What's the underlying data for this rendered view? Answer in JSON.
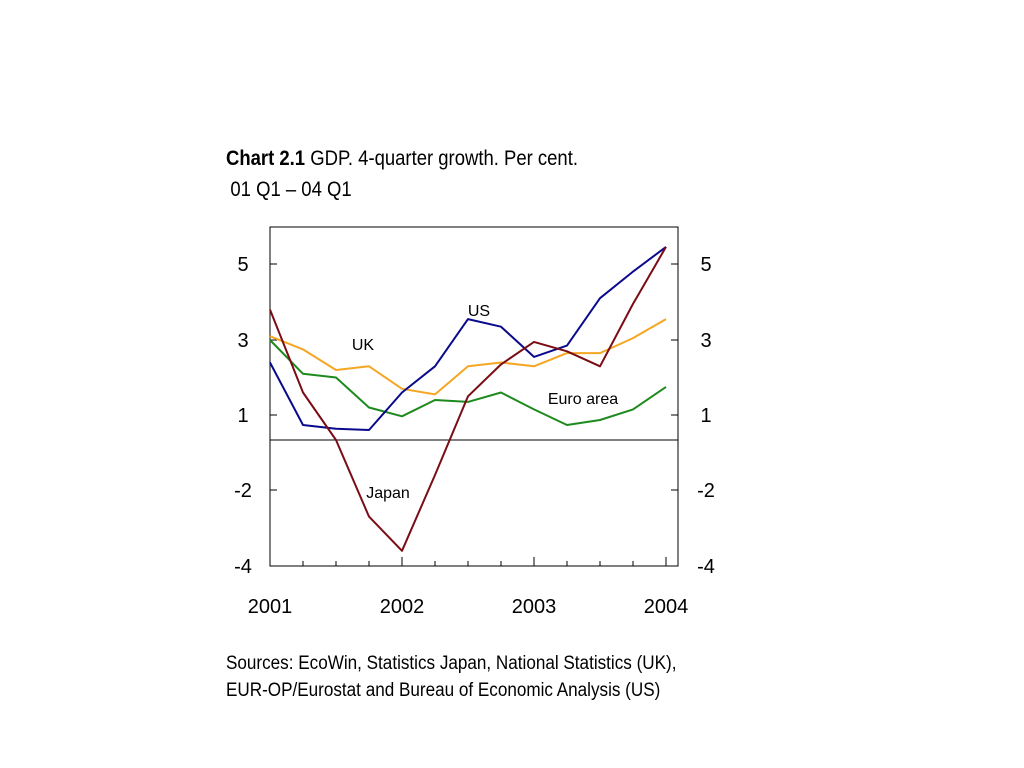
{
  "chart_data": {
    "type": "line",
    "title_number": "Chart 2.1",
    "title": "GDP. 4-quarter growth. Per cent.",
    "subtitle": "01 Q1 – 04 Q1",
    "x": [
      "01 Q1",
      "01 Q2",
      "01 Q3",
      "01 Q4",
      "02 Q1",
      "02 Q2",
      "02 Q3",
      "02 Q4",
      "03 Q1",
      "03 Q2",
      "03 Q3",
      "03 Q4",
      "04 Q1"
    ],
    "x_tick_labels": [
      "2001",
      "2002",
      "2003",
      "2004"
    ],
    "y_left_tick_labels": [
      "5",
      "3",
      "1",
      "-2",
      "-4"
    ],
    "y_right_tick_labels": [
      "5",
      "3",
      "1",
      "-2",
      "-4"
    ],
    "series": [
      {
        "name": "UK",
        "color": "#f5a623",
        "values": [
          3.1,
          2.75,
          2.2,
          2.3,
          1.7,
          1.55,
          2.3,
          2.4,
          2.3,
          2.65,
          2.65,
          3.05,
          3.55
        ]
      },
      {
        "name": "Euro area",
        "color": "#1e8a1e",
        "values": [
          3.0,
          2.1,
          2.0,
          1.2,
          0.95,
          1.4,
          1.35,
          1.6,
          1.15,
          0.6,
          0.8,
          1.15,
          1.75
        ]
      },
      {
        "name": "US",
        "color": "#0a0a8c",
        "values": [
          2.4,
          0.6,
          0.45,
          0.4,
          1.6,
          2.3,
          3.55,
          3.35,
          2.55,
          2.85,
          4.1,
          4.8,
          5.45
        ]
      },
      {
        "name": "Japan",
        "color": "#7a0c14",
        "values": [
          3.8,
          1.6,
          0.0,
          -2.7,
          -3.6,
          -1.4,
          1.5,
          2.35,
          2.95,
          2.7,
          2.3,
          3.95,
          5.45
        ]
      }
    ],
    "annotations": [
      {
        "text": "UK"
      },
      {
        "text": "US"
      },
      {
        "text": "Euro area"
      },
      {
        "text": "Japan"
      }
    ],
    "legend": "inline labels",
    "zero_line": true,
    "grid": false
  },
  "sources": {
    "line1": "Sources: EcoWin, Statistics Japan, National Statistics (UK),",
    "line2": "EUR-OP/Eurostat and Bureau of Economic Analysis (US)"
  }
}
